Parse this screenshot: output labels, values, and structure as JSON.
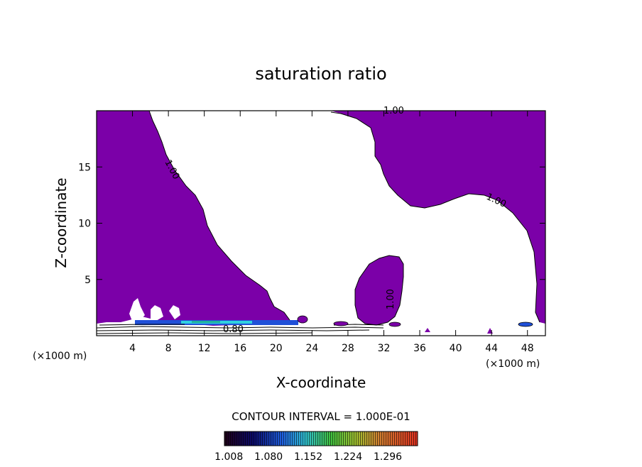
{
  "chart_data": {
    "type": "heatmap",
    "title": "saturation ratio",
    "xlabel": "X-coordinate",
    "ylabel": "Z-coordinate",
    "x_unit": "(×1000 m)",
    "x_unit_right": "(×1000 m)",
    "xlim": [
      0,
      50
    ],
    "ylim": [
      0,
      20
    ],
    "x_ticks": [
      4,
      8,
      12,
      16,
      20,
      24,
      28,
      32,
      36,
      40,
      44,
      48
    ],
    "y_ticks": [
      5,
      10,
      15
    ],
    "contour_interval_label": "CONTOUR INTERVAL = 1.000E-01",
    "contour_labels": [
      "1.00",
      "1.00",
      "1.00",
      "1.00",
      "0.80"
    ],
    "colorbar": {
      "ticks": [
        "1.008",
        "1.080",
        "1.152",
        "1.224",
        "1.296"
      ],
      "min": 1.0,
      "max": 1.35
    },
    "fill_color": "#7b00a8",
    "grid": false
  }
}
